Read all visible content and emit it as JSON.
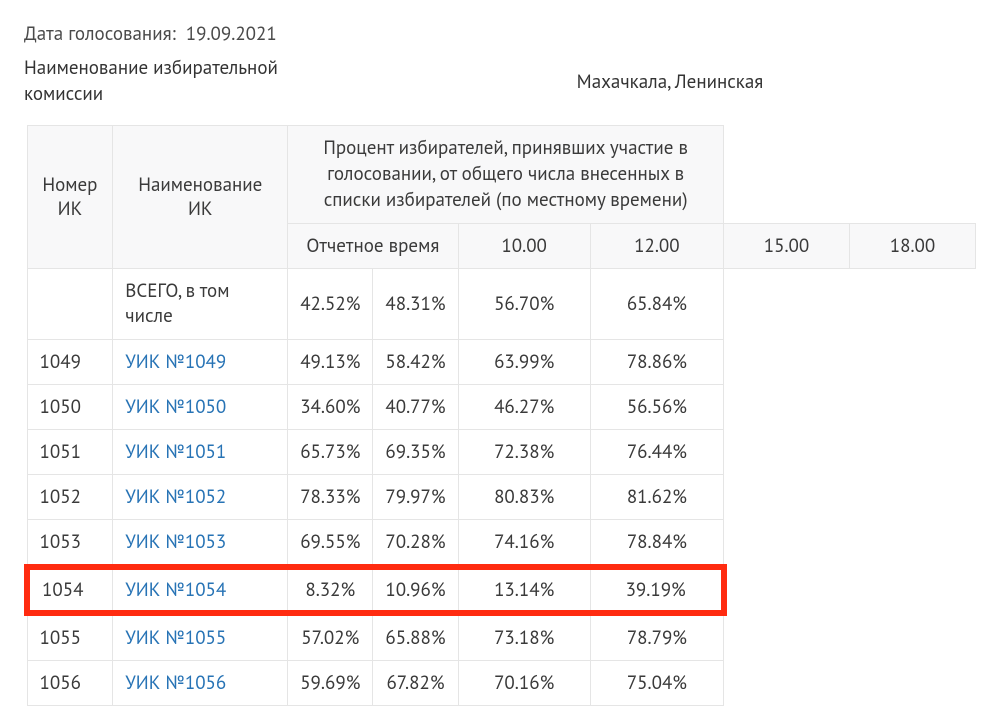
{
  "meta": {
    "date_label": "Дата голосования:",
    "date_value": "19.09.2021",
    "commission_label": "Наименование избирательной комиссии",
    "commission_value": "Махачкала, Ленинская"
  },
  "table": {
    "headers": {
      "col_num": "Номер ИК",
      "col_name": "Наименование ИК",
      "percent_title": "Процент избирателей, принявших участие в голосовании, от общего числа внесенных в списки избирателей (по местному времени)",
      "report_time": "Отчетное время",
      "times": [
        "10.00",
        "12.00",
        "15.00",
        "18.00"
      ]
    },
    "summary_row": {
      "label": "ВСЕГО, в том числе",
      "values": [
        "42.52%",
        "48.31%",
        "56.70%",
        "65.84%"
      ]
    },
    "rows": [
      {
        "num": "1049",
        "name": "УИК №1049",
        "values": [
          "49.13%",
          "58.42%",
          "63.99%",
          "78.86%"
        ],
        "highlight": false
      },
      {
        "num": "1050",
        "name": "УИК №1050",
        "values": [
          "34.60%",
          "40.77%",
          "46.27%",
          "56.56%"
        ],
        "highlight": false
      },
      {
        "num": "1051",
        "name": "УИК №1051",
        "values": [
          "65.73%",
          "69.35%",
          "72.38%",
          "76.44%"
        ],
        "highlight": false
      },
      {
        "num": "1052",
        "name": "УИК №1052",
        "values": [
          "78.33%",
          "79.97%",
          "80.83%",
          "81.62%"
        ],
        "highlight": false
      },
      {
        "num": "1053",
        "name": "УИК №1053",
        "values": [
          "69.55%",
          "70.28%",
          "74.16%",
          "78.84%"
        ],
        "highlight": false
      },
      {
        "num": "1054",
        "name": "УИК №1054",
        "values": [
          "8.32%",
          "10.96%",
          "13.14%",
          "39.19%"
        ],
        "highlight": true
      },
      {
        "num": "1055",
        "name": "УИК №1055",
        "values": [
          "57.02%",
          "65.88%",
          "73.18%",
          "78.79%"
        ],
        "highlight": false
      },
      {
        "num": "1056",
        "name": "УИК №1056",
        "values": [
          "59.69%",
          "67.82%",
          "70.16%",
          "75.04%"
        ],
        "highlight": false
      }
    ]
  },
  "style": {
    "link_color": "#2773b5",
    "border_color": "#e5e5e5",
    "header_bg": "#f8f8f9",
    "highlight_color": "#ff2b10",
    "text_color": "#3a3a3a",
    "font_size_base": 19
  }
}
